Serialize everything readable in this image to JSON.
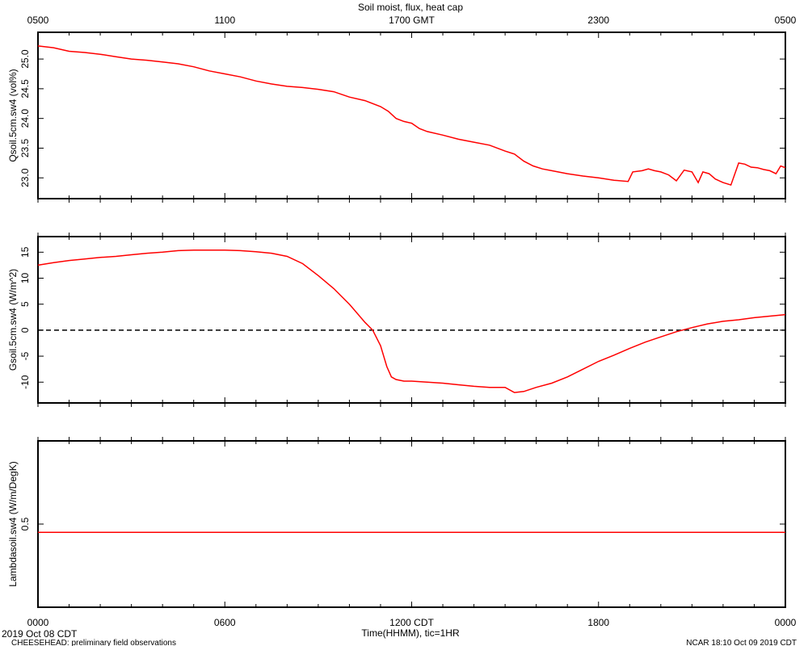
{
  "title": "Soil moist, flux, heat cap",
  "top_axis": {
    "unit": "GMT",
    "labels": [
      "0500",
      "1100",
      "1700 GMT",
      "2300",
      "0500"
    ]
  },
  "bottom_axis": {
    "label": "Time(HHMM), tic=1HR",
    "labels": [
      "0000",
      "0600",
      "1200 CDT",
      "1800",
      "0000"
    ]
  },
  "footer": {
    "start_date": "2019 Oct 08 CDT",
    "project": "CHEESEHEAD: preliminary field observations",
    "credit": "NCAR 18:10 Oct 09 2019 CDT"
  },
  "colors": {
    "series": "#ff0000",
    "axes": "#000000"
  },
  "chart_data": [
    {
      "type": "line",
      "ylabel": "Qsoil.5cm.sw4 (vol%)",
      "xlim": [
        0,
        24
      ],
      "ylim": [
        22.65,
        25.45
      ],
      "yticks": [
        23.0,
        23.5,
        24.0,
        24.5,
        25.0
      ],
      "yticklabels": [
        "23.0",
        "23.5",
        "24.0",
        "24.5",
        "25.0"
      ],
      "zero_line": false,
      "series": [
        {
          "x": [
            0,
            0.5,
            1.0,
            1.5,
            2.0,
            2.5,
            3.0,
            3.5,
            4.0,
            4.5,
            5.0,
            5.5,
            6.0,
            6.5,
            7.0,
            7.5,
            8.0,
            8.5,
            9.0,
            9.5,
            10.0,
            10.5,
            11.0,
            11.25,
            11.5,
            11.75,
            12.0,
            12.25,
            12.5,
            13.0,
            13.5,
            14.0,
            14.5,
            15.0,
            15.3,
            15.6,
            15.9,
            16.2,
            16.5,
            17.0,
            17.5,
            18.0,
            18.5,
            18.95,
            19.1,
            19.4,
            19.6,
            19.8,
            20.0,
            20.25,
            20.5,
            20.75,
            21.0,
            21.2,
            21.35,
            21.55,
            21.75,
            22.0,
            22.25,
            22.5,
            22.7,
            22.9,
            23.1,
            23.3,
            23.5,
            23.7,
            23.85,
            24.0
          ],
          "values": [
            25.22,
            25.19,
            25.13,
            25.11,
            25.08,
            25.04,
            25.0,
            24.98,
            24.95,
            24.92,
            24.87,
            24.8,
            24.75,
            24.7,
            24.63,
            24.58,
            24.54,
            24.52,
            24.49,
            24.45,
            24.36,
            24.3,
            24.2,
            24.12,
            24.0,
            23.95,
            23.92,
            23.83,
            23.78,
            23.72,
            23.65,
            23.6,
            23.55,
            23.45,
            23.4,
            23.28,
            23.2,
            23.15,
            23.12,
            23.07,
            23.03,
            23.0,
            22.96,
            22.94,
            23.1,
            23.12,
            23.15,
            23.12,
            23.1,
            23.05,
            22.95,
            23.13,
            23.1,
            22.92,
            23.1,
            23.07,
            22.98,
            22.92,
            22.88,
            23.25,
            23.23,
            23.18,
            23.17,
            23.14,
            23.12,
            23.07,
            23.2,
            23.17
          ]
        }
      ]
    },
    {
      "type": "line",
      "ylabel": "Gsoil.5cm.sw4 (W/m^2)",
      "xlim": [
        0,
        24
      ],
      "ylim": [
        -14,
        18
      ],
      "yticks": [
        -10,
        -5,
        0,
        5,
        10,
        15
      ],
      "yticklabels": [
        "-10",
        "-5",
        "0",
        "5",
        "10",
        "15"
      ],
      "zero_line": true,
      "series": [
        {
          "x": [
            0,
            0.5,
            1.0,
            1.5,
            2.0,
            2.5,
            3.0,
            3.5,
            4.0,
            4.5,
            5.0,
            5.5,
            6.0,
            6.5,
            7.0,
            7.5,
            8.0,
            8.5,
            9.0,
            9.5,
            10.0,
            10.5,
            10.75,
            11.0,
            11.2,
            11.35,
            11.5,
            11.75,
            12.0,
            12.5,
            13.0,
            13.5,
            14.0,
            14.5,
            15.0,
            15.3,
            15.6,
            16.0,
            16.5,
            17.0,
            17.5,
            18.0,
            18.5,
            19.0,
            19.5,
            20.0,
            20.5,
            21.0,
            21.5,
            22.0,
            22.5,
            23.0,
            23.5,
            24.0
          ],
          "values": [
            12.5,
            13.0,
            13.4,
            13.7,
            14.0,
            14.2,
            14.5,
            14.8,
            15.0,
            15.3,
            15.4,
            15.4,
            15.4,
            15.3,
            15.1,
            14.8,
            14.2,
            12.8,
            10.5,
            8.0,
            5.0,
            1.5,
            0.0,
            -3.0,
            -7.0,
            -9.0,
            -9.5,
            -9.8,
            -9.8,
            -10.0,
            -10.2,
            -10.5,
            -10.8,
            -11.0,
            -11.0,
            -12.0,
            -11.8,
            -11.0,
            -10.2,
            -9.0,
            -7.5,
            -6.0,
            -4.8,
            -3.5,
            -2.3,
            -1.3,
            -0.3,
            0.5,
            1.2,
            1.7,
            2.0,
            2.4,
            2.7,
            3.0
          ]
        }
      ]
    },
    {
      "type": "line",
      "ylabel": "Lambdasoil.sw4 (W/m/DegK)",
      "xlim": [
        0,
        24
      ],
      "ylim": [
        0.0,
        1.0
      ],
      "yticks": [
        0.5
      ],
      "yticklabels": [
        "0.5"
      ],
      "zero_line": false,
      "series": [
        {
          "x": [
            0,
            24
          ],
          "values": [
            0.45,
            0.45
          ]
        }
      ]
    }
  ]
}
